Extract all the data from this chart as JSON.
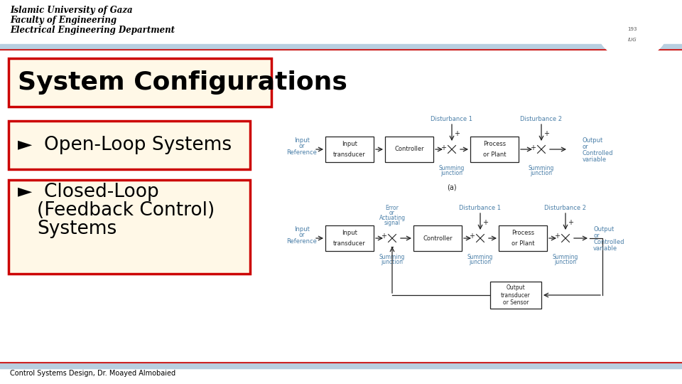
{
  "header_line1": "Islamic University of Gaza",
  "header_line2": "Faculty of Engineering",
  "header_line3": "Electrical Engineering Department",
  "title": "System Configurations",
  "bullet1_prefix": "►  ",
  "bullet1_text": "Open-Loop Systems",
  "bullet2_prefix": "►  ",
  "bullet2_line1": "Closed-Loop",
  "bullet2_line2": "(Feedback Control)",
  "bullet2_line3": "Systems",
  "footer": "Control Systems Design, Dr. Moayed Almobaied",
  "bg_color": "#ffffff",
  "box_fill": "#fff8e7",
  "box_edge": "#cc0000",
  "label_color": "#4a7fa8",
  "diagram_text_color": "#333333",
  "sep_blue": "#b8cfe0",
  "sep_red": "#cc2222",
  "header_font": "DejaVu Sans",
  "title_fontsize": 26,
  "bullet_fontsize": 19
}
